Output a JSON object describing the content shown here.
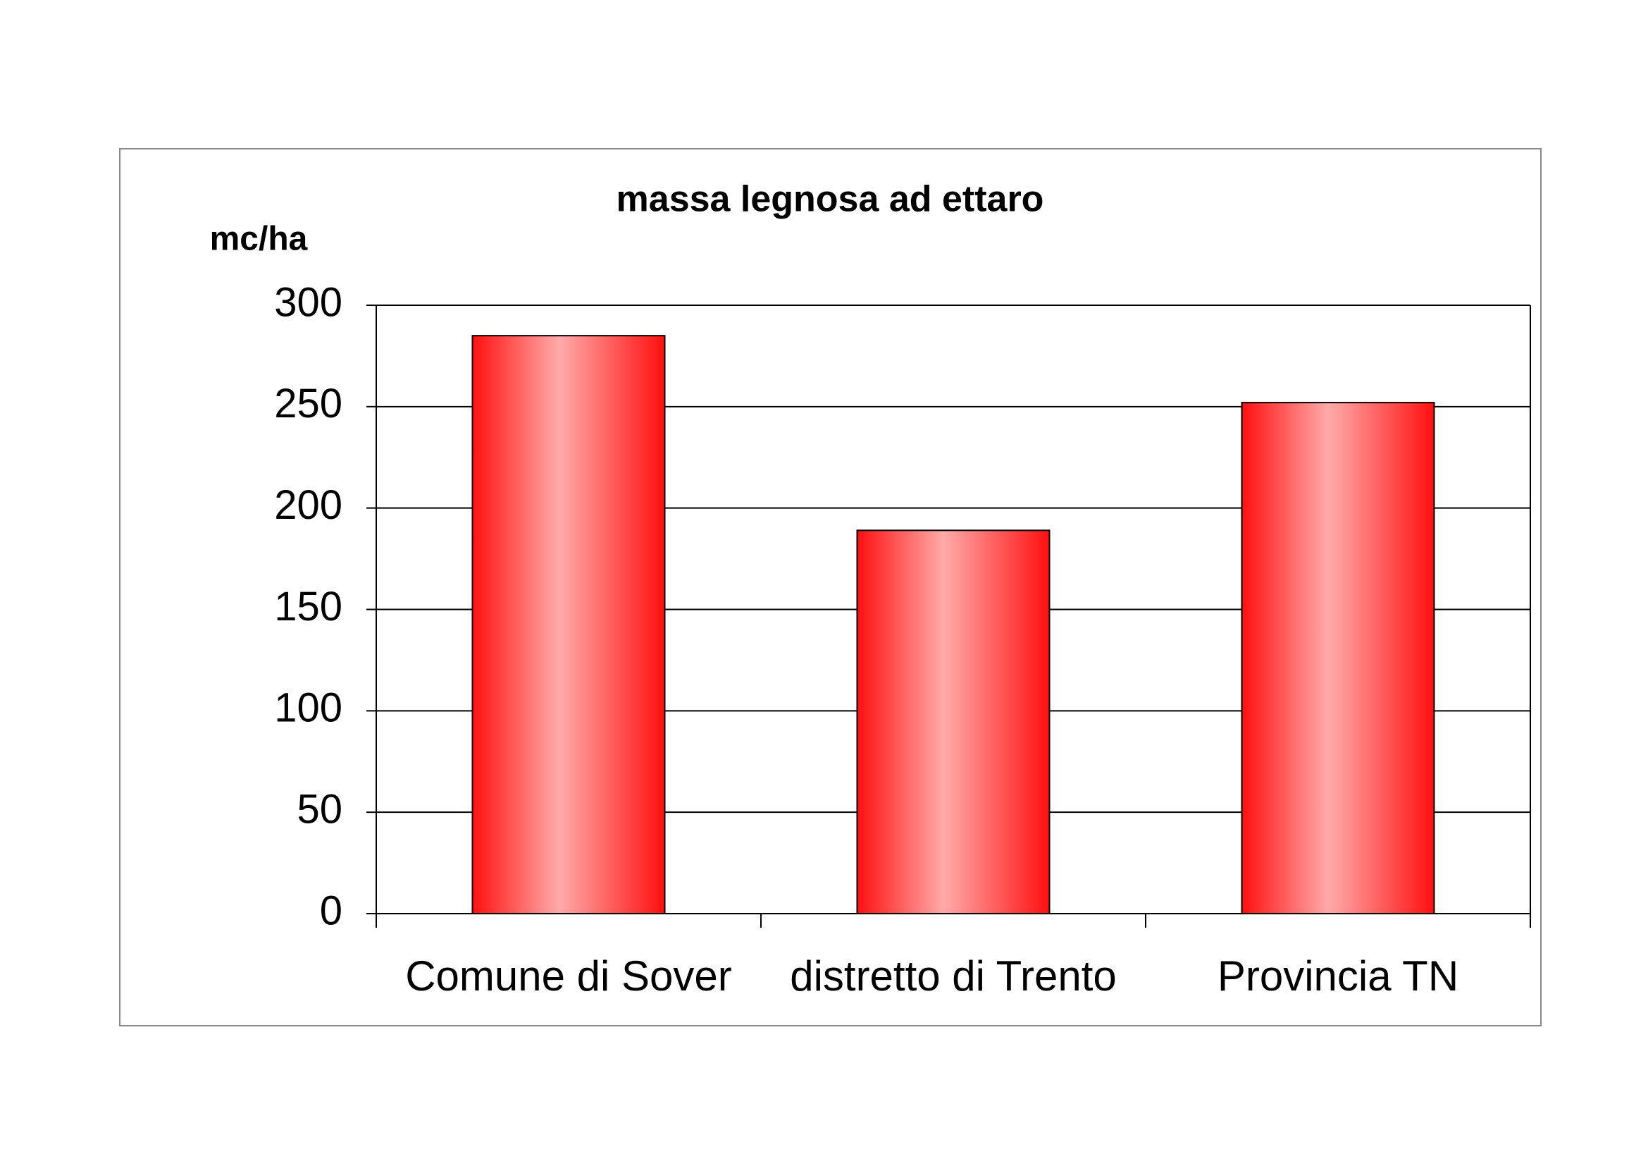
{
  "chart_data": {
    "type": "bar",
    "title": "massa legnosa ad ettaro",
    "y_label": "mc/ha",
    "categories": [
      "Comune di Sover",
      "distretto di Trento",
      "Provincia TN"
    ],
    "values": [
      285,
      189,
      252
    ],
    "color": "#ff1010",
    "ylim": [
      0,
      300
    ],
    "yticks": [
      0,
      50,
      100,
      150,
      200,
      250,
      300
    ],
    "grid": true
  }
}
